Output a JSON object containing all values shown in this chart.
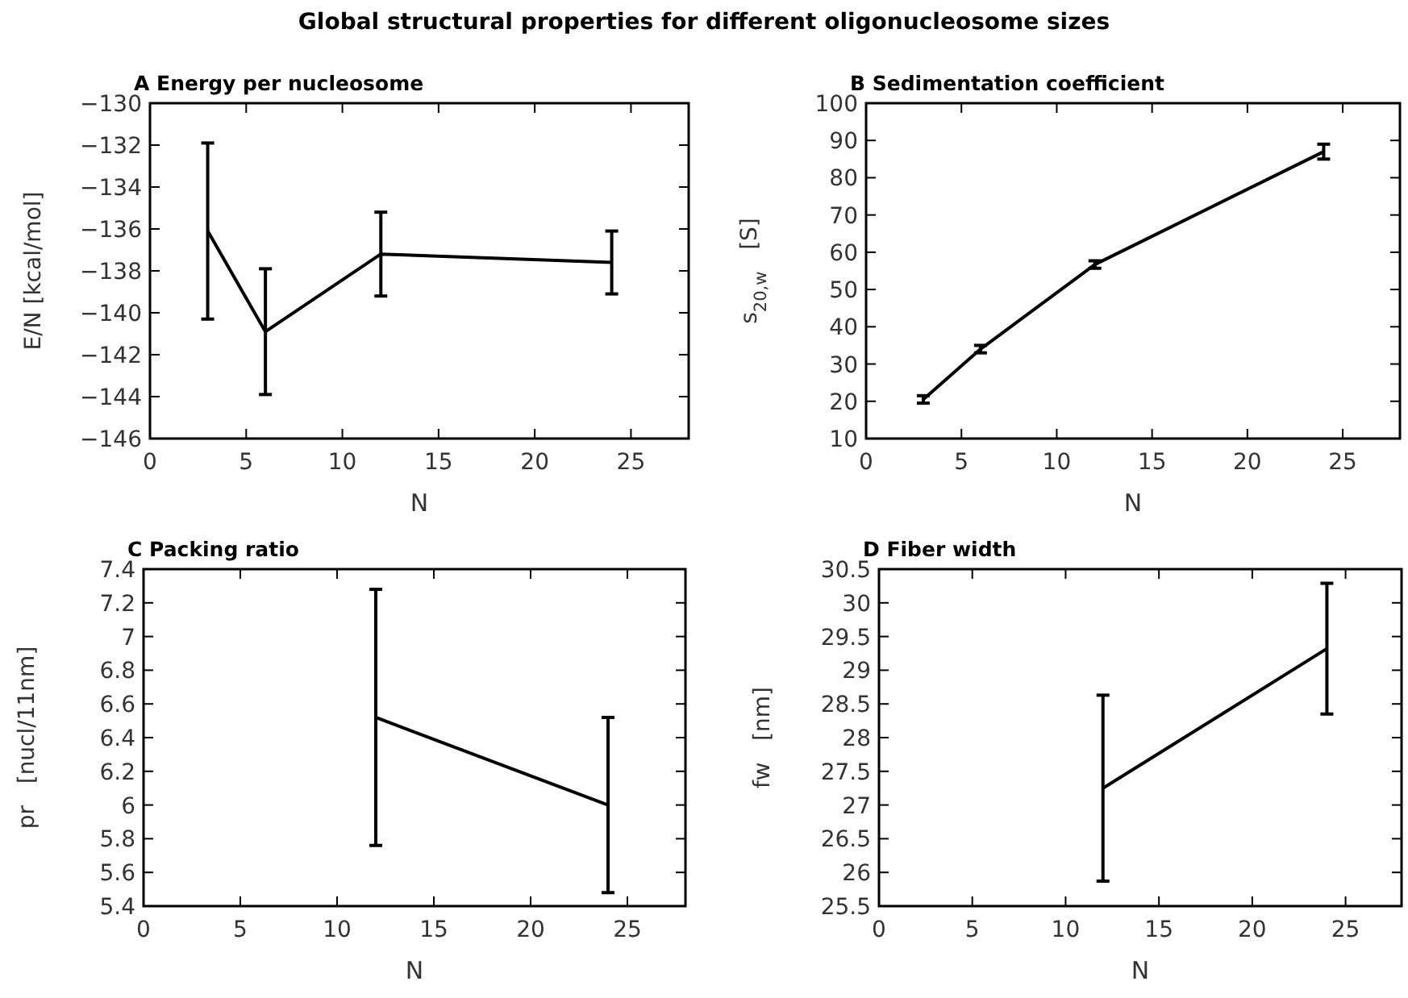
{
  "chart_data": [
    {
      "type": "line",
      "title": "A  Energy per nucleosome",
      "annotations": [
        "Global structural properties for different oligonucleosome sizes"
      ],
      "xlabel": "N",
      "ylabel": "E/N [kcal/mol]",
      "x": [
        3,
        6,
        12,
        24
      ],
      "series": [
        {
          "color": "#000000",
          "values": [
            -136.1,
            -140.9,
            -137.2,
            -137.6
          ],
          "errors": [
            4.2,
            3,
            2,
            1.5
          ]
        }
      ],
      "xlim": [
        0,
        28
      ],
      "xticks": [
        0,
        5,
        10,
        15,
        20,
        25
      ],
      "ylim": [
        -146,
        -130
      ],
      "yticks": [
        -146,
        -144,
        -142,
        -140,
        -138,
        -136,
        -134,
        -132,
        -130
      ],
      "line_style": "solid"
    },
    {
      "type": "line",
      "title": "B  Sedimentation coefficient",
      "xlabel": "N",
      "ylabel": "s$_{20,w}$   [S]",
      "x": [
        3,
        6,
        12,
        24
      ],
      "series": [
        {
          "color": "#000000",
          "values": [
            20.5,
            34,
            56.7,
            87
          ],
          "errors": [
            1,
            1,
            1,
            2
          ]
        }
      ],
      "xlim": [
        0,
        28
      ],
      "xticks": [
        0,
        5,
        10,
        15,
        20,
        25
      ],
      "ylim": [
        10,
        100
      ],
      "yticks": [
        10,
        20,
        30,
        40,
        50,
        60,
        70,
        80,
        90,
        100
      ],
      "line_style": "solid"
    },
    {
      "type": "line",
      "title": "C  Packing ratio",
      "xlabel": "N",
      "ylabel": "pr   [nucl/11nm]",
      "x": [
        12,
        24
      ],
      "series": [
        {
          "color": "#000000",
          "values": [
            6.52,
            6.0
          ],
          "errors": [
            0.76,
            0.52
          ]
        }
      ],
      "xlim": [
        0,
        28
      ],
      "xticks": [
        0,
        5,
        10,
        15,
        20,
        25
      ],
      "ylim": [
        5.4,
        7.4
      ],
      "yticks": [
        5.4,
        5.6,
        5.8,
        6,
        6.2,
        6.4,
        6.6,
        6.8,
        7,
        7.2,
        7.4
      ],
      "line_style": "solid"
    },
    {
      "type": "line",
      "title": "D  Fiber width",
      "xlabel": "N",
      "ylabel": "fw   [nm]",
      "x": [
        12,
        24
      ],
      "series": [
        {
          "color": "#000000",
          "values": [
            27.25,
            29.32
          ],
          "errors": [
            1.38,
            0.97
          ]
        }
      ],
      "xlim": [
        0,
        28
      ],
      "xticks": [
        0,
        5,
        10,
        15,
        20,
        25
      ],
      "ylim": [
        25.5,
        30.5
      ],
      "yticks": [
        25.5,
        26,
        26.5,
        27,
        27.5,
        28,
        28.5,
        29,
        29.5,
        30,
        30.5
      ],
      "line_style": "solid"
    }
  ]
}
